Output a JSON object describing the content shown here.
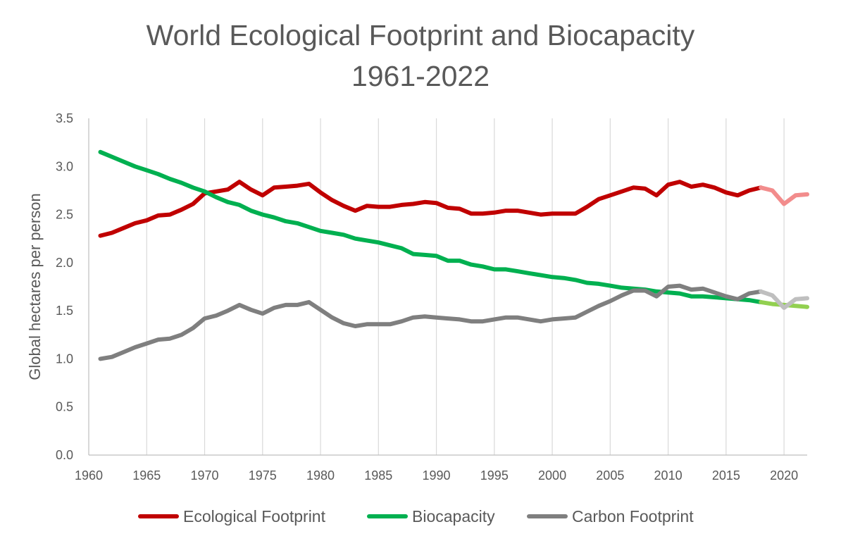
{
  "chart_data": {
    "type": "line",
    "title_line1": "World Ecological Footprint and Biocapacity",
    "title_line2": "1961-2022",
    "ylabel": "Global hectares  per person",
    "xlabel": "",
    "xlim": [
      1960,
      2022
    ],
    "ylim": [
      0,
      3.5
    ],
    "x_ticks": [
      "1960",
      "1965",
      "1970",
      "1975",
      "1980",
      "1985",
      "1990",
      "1995",
      "2000",
      "2005",
      "2010",
      "2015",
      "2020"
    ],
    "y_ticks": [
      "0.0",
      "0.5",
      "1.0",
      "1.5",
      "2.0",
      "2.5",
      "3.0",
      "3.5"
    ],
    "grid": "vertical",
    "legend_position": "bottom",
    "series": [
      {
        "name": "Ecological Footprint",
        "color": "#C00000",
        "projection_color": "#F28C8C",
        "x": [
          1961,
          1962,
          1963,
          1964,
          1965,
          1966,
          1967,
          1968,
          1969,
          1970,
          1971,
          1972,
          1973,
          1974,
          1975,
          1976,
          1977,
          1978,
          1979,
          1980,
          1981,
          1982,
          1983,
          1984,
          1985,
          1986,
          1987,
          1988,
          1989,
          1990,
          1991,
          1992,
          1993,
          1994,
          1995,
          1996,
          1997,
          1998,
          1999,
          2000,
          2001,
          2002,
          2003,
          2004,
          2005,
          2006,
          2007,
          2008,
          2009,
          2010,
          2011,
          2012,
          2013,
          2014,
          2015,
          2016,
          2017,
          2018,
          2019,
          2020,
          2021,
          2022
        ],
        "values": [
          2.28,
          2.31,
          2.36,
          2.41,
          2.44,
          2.49,
          2.5,
          2.55,
          2.61,
          2.72,
          2.74,
          2.76,
          2.84,
          2.76,
          2.7,
          2.78,
          2.79,
          2.8,
          2.82,
          2.73,
          2.65,
          2.59,
          2.54,
          2.59,
          2.58,
          2.58,
          2.6,
          2.61,
          2.63,
          2.62,
          2.57,
          2.56,
          2.51,
          2.51,
          2.52,
          2.54,
          2.54,
          2.52,
          2.5,
          2.51,
          2.51,
          2.51,
          2.58,
          2.66,
          2.7,
          2.74,
          2.78,
          2.77,
          2.7,
          2.81,
          2.84,
          2.79,
          2.81,
          2.78,
          2.73,
          2.7,
          2.75,
          2.78,
          2.75,
          2.61,
          2.7,
          2.71
        ],
        "projection_start": 2018
      },
      {
        "name": "Biocapacity",
        "color": "#00B050",
        "projection_color": "#92D050",
        "x": [
          1961,
          1962,
          1963,
          1964,
          1965,
          1966,
          1967,
          1968,
          1969,
          1970,
          1971,
          1972,
          1973,
          1974,
          1975,
          1976,
          1977,
          1978,
          1979,
          1980,
          1981,
          1982,
          1983,
          1984,
          1985,
          1986,
          1987,
          1988,
          1989,
          1990,
          1991,
          1992,
          1993,
          1994,
          1995,
          1996,
          1997,
          1998,
          1999,
          2000,
          2001,
          2002,
          2003,
          2004,
          2005,
          2006,
          2007,
          2008,
          2009,
          2010,
          2011,
          2012,
          2013,
          2014,
          2015,
          2016,
          2017,
          2018,
          2019,
          2020,
          2021,
          2022
        ],
        "values": [
          3.15,
          3.1,
          3.05,
          3.0,
          2.96,
          2.92,
          2.87,
          2.83,
          2.78,
          2.74,
          2.68,
          2.63,
          2.6,
          2.54,
          2.5,
          2.47,
          2.43,
          2.41,
          2.37,
          2.33,
          2.31,
          2.29,
          2.25,
          2.23,
          2.21,
          2.18,
          2.15,
          2.09,
          2.08,
          2.07,
          2.02,
          2.02,
          1.98,
          1.96,
          1.93,
          1.93,
          1.91,
          1.89,
          1.87,
          1.85,
          1.84,
          1.82,
          1.79,
          1.78,
          1.76,
          1.74,
          1.73,
          1.72,
          1.7,
          1.69,
          1.68,
          1.65,
          1.65,
          1.64,
          1.63,
          1.62,
          1.61,
          1.59,
          1.57,
          1.56,
          1.55,
          1.54
        ],
        "projection_start": 2018
      },
      {
        "name": "Carbon Footprint",
        "color": "#7F7F7F",
        "projection_color": "#BFBFBF",
        "x": [
          1961,
          1962,
          1963,
          1964,
          1965,
          1966,
          1967,
          1968,
          1969,
          1970,
          1971,
          1972,
          1973,
          1974,
          1975,
          1976,
          1977,
          1978,
          1979,
          1980,
          1981,
          1982,
          1983,
          1984,
          1985,
          1986,
          1987,
          1988,
          1989,
          1990,
          1991,
          1992,
          1993,
          1994,
          1995,
          1996,
          1997,
          1998,
          1999,
          2000,
          2001,
          2002,
          2003,
          2004,
          2005,
          2006,
          2007,
          2008,
          2009,
          2010,
          2011,
          2012,
          2013,
          2014,
          2015,
          2016,
          2017,
          2018,
          2019,
          2020,
          2021,
          2022
        ],
        "values": [
          1.0,
          1.02,
          1.07,
          1.12,
          1.16,
          1.2,
          1.21,
          1.25,
          1.32,
          1.42,
          1.45,
          1.5,
          1.56,
          1.51,
          1.47,
          1.53,
          1.56,
          1.56,
          1.59,
          1.51,
          1.43,
          1.37,
          1.34,
          1.36,
          1.36,
          1.36,
          1.39,
          1.43,
          1.44,
          1.43,
          1.42,
          1.41,
          1.39,
          1.39,
          1.41,
          1.43,
          1.43,
          1.41,
          1.39,
          1.41,
          1.42,
          1.43,
          1.49,
          1.55,
          1.6,
          1.66,
          1.71,
          1.71,
          1.65,
          1.75,
          1.76,
          1.72,
          1.73,
          1.69,
          1.65,
          1.62,
          1.68,
          1.7,
          1.66,
          1.53,
          1.62,
          1.63
        ],
        "projection_start": 2018
      }
    ]
  }
}
